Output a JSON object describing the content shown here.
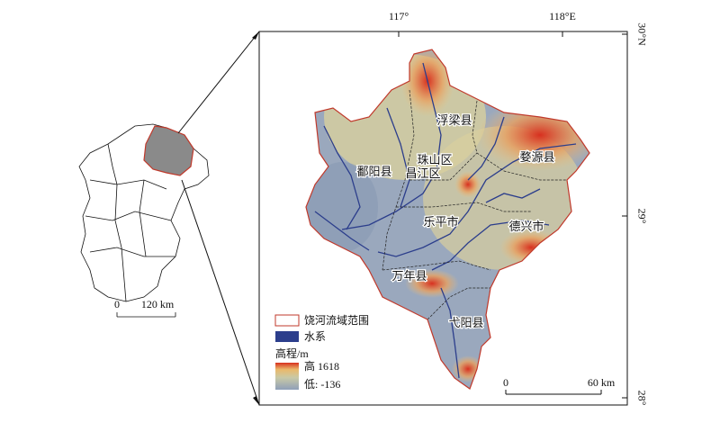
{
  "coordinates": {
    "top": [
      "117°",
      "118°E"
    ],
    "right": [
      "30°N",
      "29°",
      "28°"
    ]
  },
  "regions": [
    "浮梁县",
    "婺源县",
    "珠山区",
    "昌江区",
    "鄱阳县",
    "乐平市",
    "德兴市",
    "万年县",
    "弋阳县"
  ],
  "legend": {
    "basin": "饶河流域范围",
    "water": "水系",
    "elevation_title": "高程/m",
    "high": {
      "label": "高",
      "value": 1618
    },
    "low": {
      "label": "低:",
      "value": -136
    }
  },
  "inset_scale": {
    "start": "0",
    "end": "120 km"
  },
  "scale_bar": {
    "start": "0",
    "end": "60 km"
  }
}
